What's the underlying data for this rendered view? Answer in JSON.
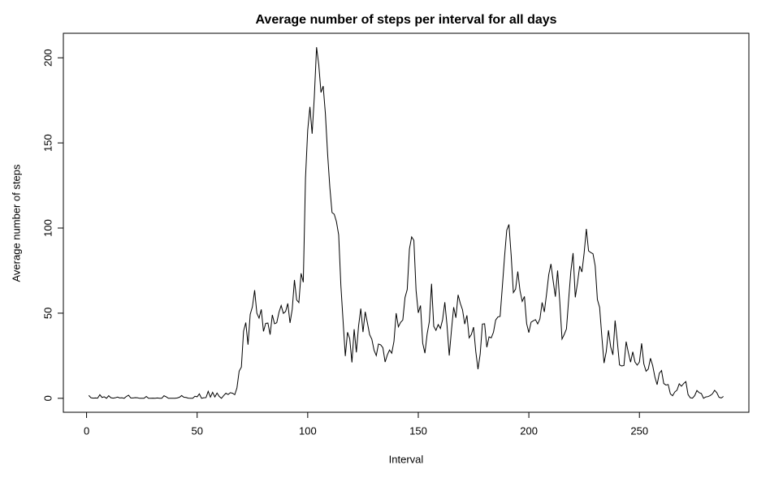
{
  "chart_data": {
    "type": "line",
    "title": "Average number of steps per interval for all days",
    "x_label": "Interval",
    "y_label": "Average number of steps",
    "color": "#000000",
    "xlim": [
      -10.5,
      299.5
    ],
    "ylim": [
      -8.2,
      214.4
    ],
    "xticks": [
      0,
      50,
      100,
      150,
      200,
      250
    ],
    "yticks": [
      0,
      50,
      100,
      150,
      200
    ],
    "x": [
      1,
      2,
      3,
      4,
      5,
      6,
      7,
      8,
      9,
      10,
      11,
      12,
      13,
      14,
      15,
      16,
      17,
      18,
      19,
      20,
      21,
      22,
      23,
      24,
      25,
      26,
      27,
      28,
      29,
      30,
      31,
      32,
      33,
      34,
      35,
      36,
      37,
      38,
      39,
      40,
      41,
      42,
      43,
      44,
      45,
      46,
      47,
      48,
      49,
      50,
      51,
      52,
      53,
      54,
      55,
      56,
      57,
      58,
      59,
      60,
      61,
      62,
      63,
      64,
      65,
      66,
      67,
      68,
      69,
      70,
      71,
      72,
      73,
      74,
      75,
      76,
      77,
      78,
      79,
      80,
      81,
      82,
      83,
      84,
      85,
      86,
      87,
      88,
      89,
      90,
      91,
      92,
      93,
      94,
      95,
      96,
      97,
      98,
      99,
      100,
      101,
      102,
      103,
      104,
      105,
      106,
      107,
      108,
      109,
      110,
      111,
      112,
      113,
      114,
      115,
      116,
      117,
      118,
      119,
      120,
      121,
      122,
      123,
      124,
      125,
      126,
      127,
      128,
      129,
      130,
      131,
      132,
      133,
      134,
      135,
      136,
      137,
      138,
      139,
      140,
      141,
      142,
      143,
      144,
      145,
      146,
      147,
      148,
      149,
      150,
      151,
      152,
      153,
      154,
      155,
      156,
      157,
      158,
      159,
      160,
      161,
      162,
      163,
      164,
      165,
      166,
      167,
      168,
      169,
      170,
      171,
      172,
      173,
      174,
      175,
      176,
      177,
      178,
      179,
      180,
      181,
      182,
      183,
      184,
      185,
      186,
      187,
      188,
      189,
      190,
      191,
      192,
      193,
      194,
      195,
      196,
      197,
      198,
      199,
      200,
      201,
      202,
      203,
      204,
      205,
      206,
      207,
      208,
      209,
      210,
      211,
      212,
      213,
      214,
      215,
      216,
      217,
      218,
      219,
      220,
      221,
      222,
      223,
      224,
      225,
      226,
      227,
      228,
      229,
      230,
      231,
      232,
      233,
      234,
      235,
      236,
      237,
      238,
      239,
      240,
      241,
      242,
      243,
      244,
      245,
      246,
      247,
      248,
      249,
      250,
      251,
      252,
      253,
      254,
      255,
      256,
      257,
      258,
      259,
      260,
      261,
      262,
      263,
      264,
      265,
      266,
      267,
      268,
      269,
      270,
      271,
      272,
      273,
      274,
      275,
      276,
      277,
      278,
      279,
      280,
      281,
      282,
      283,
      284,
      285,
      286,
      287,
      288
    ],
    "values": [
      1.7,
      0.3,
      0.1,
      0.2,
      0.1,
      2.1,
      0.5,
      0.9,
      0,
      1.5,
      0.3,
      0.1,
      0.3,
      0.7,
      0.2,
      0.3,
      0,
      1.1,
      1.8,
      0.2,
      0.2,
      0.4,
      0.3,
      0,
      0,
      0,
      1.1,
      0,
      0,
      0.1,
      0,
      0.2,
      0,
      0,
      1.5,
      0.9,
      0,
      0,
      0,
      0,
      0.2,
      0.6,
      1.6,
      0.6,
      0.5,
      0.1,
      0,
      0,
      1.2,
      0.9,
      2.6,
      0,
      0.3,
      0.4,
      4.1,
      0.7,
      3.5,
      0.8,
      3.1,
      1.1,
      0,
      1.6,
      3,
      2.2,
      3.3,
      3,
      2.1,
      6.1,
      16,
      18.3,
      39.5,
      44.5,
      31.5,
      49.3,
      53.8,
      63.5,
      50,
      47.1,
      52.2,
      39.3,
      44,
      44.2,
      37.4,
      49,
      43.8,
      44.4,
      50.5,
      54.5,
      49.9,
      51,
      55.7,
      44.3,
      52.3,
      69.5,
      57.8,
      56.2,
      73.4,
      68.2,
      129.4,
      157.5,
      171.2,
      155.4,
      177.3,
      206.2,
      195.9,
      179.6,
      183.4,
      167,
      143.5,
      124,
      109.1,
      108.1,
      103.7,
      96,
      66.2,
      45.2,
      24.8,
      38.8,
      35,
      21.1,
      40.6,
      27,
      42.4,
      52.7,
      38.9,
      50.8,
      44.3,
      37.4,
      34.7,
      28.3,
      25.1,
      31.9,
      31.4,
      29.7,
      21.3,
      25.5,
      28.4,
      26.5,
      33.4,
      50,
      42,
      44.6,
      46,
      59.2,
      63.9,
      87.7,
      94.8,
      92.8,
      63.4,
      50.2,
      54.5,
      32.4,
      26.5,
      37.7,
      45.1,
      67.3,
      42.3,
      39.9,
      43.3,
      41,
      46.2,
      56.4,
      42.8,
      25.1,
      40,
      53.5,
      47.3,
      60.8,
      55.8,
      52,
      43.6,
      48.7,
      35.5,
      37.5,
      41.8,
      27.5,
      17.1,
      26.1,
      43.6,
      43.8,
      30,
      36.1,
      35.5,
      38.8,
      46,
      47.8,
      48.1,
      65.3,
      82.9,
      98.7,
      102.1,
      84,
      62.1,
      64.1,
      74.5,
      63.2,
      56.9,
      59.8,
      43.9,
      38.6,
      44.7,
      45.5,
      46.2,
      43.7,
      46.6,
      56.3,
      50.7,
      61.2,
      72.7,
      78.9,
      68.9,
      59.7,
      75.1,
      56.5,
      34.8,
      37.5,
      40.7,
      58,
      74.7,
      85.3,
      59.3,
      67.8,
      77.7,
      74.2,
      85.3,
      99.5,
      86.6,
      85.6,
      84.9,
      77.8,
      58,
      53.4,
      36.3,
      20.7,
      27.4,
      40,
      30.2,
      25.5,
      45.7,
      33.5,
      19.6,
      19,
      19.3,
      33.3,
      26.8,
      21.2,
      27.3,
      21.3,
      19.5,
      21.3,
      32.3,
      20.2,
      15.9,
      17.2,
      23.5,
      19.2,
      12.5,
      8,
      14.7,
      16.3,
      8.7,
      7.8,
      8.1,
      2.6,
      1.5,
      3.7,
      4.8,
      8.5,
      7.1,
      8.7,
      9.8,
      2.2,
      0.3,
      0.1,
      1.6,
      4.6,
      3.3,
      2.8,
      0,
      0.8,
      1,
      1.6,
      2.6,
      4.7,
      3.3,
      0.6,
      0.2,
      1.1
    ]
  }
}
